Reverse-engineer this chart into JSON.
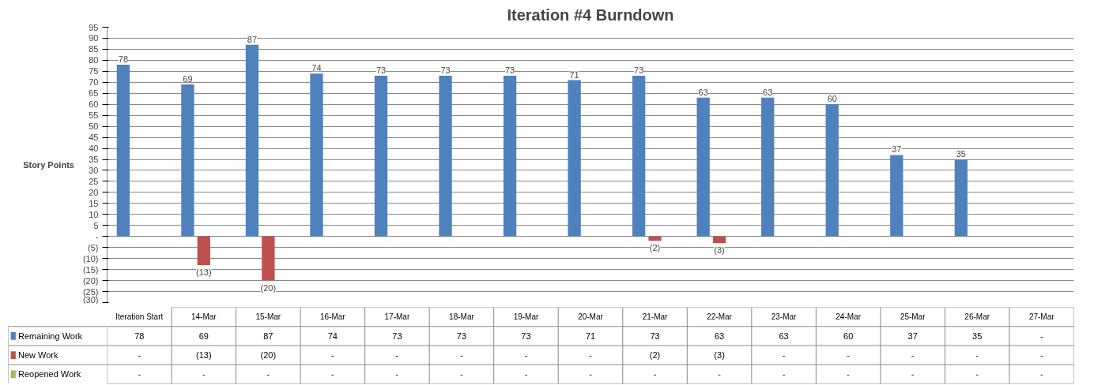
{
  "chart_data": {
    "type": "bar",
    "title": "Iteration #4 Burndown",
    "ylabel": "Story Points",
    "categories": [
      "Iteration Start",
      "14-Mar",
      "15-Mar",
      "16-Mar",
      "17-Mar",
      "18-Mar",
      "19-Mar",
      "20-Mar",
      "21-Mar",
      "22-Mar",
      "23-Mar",
      "24-Mar",
      "25-Mar",
      "26-Mar",
      "27-Mar"
    ],
    "series": [
      {
        "name": "Remaining Work",
        "color": "#4f81bd",
        "values": [
          78,
          69,
          87,
          74,
          73,
          73,
          73,
          71,
          73,
          63,
          63,
          60,
          37,
          35,
          0
        ],
        "value_labels": [
          "78",
          "69",
          "87",
          "74",
          "73",
          "73",
          "73",
          "71",
          "73",
          "63",
          "63",
          "60",
          "37",
          "35",
          "-"
        ]
      },
      {
        "name": "New Work",
        "color": "#c0504d",
        "values": [
          0,
          -13,
          -20,
          0,
          0,
          0,
          0,
          0,
          -2,
          -3,
          0,
          0,
          0,
          0,
          0
        ],
        "value_labels": [
          "-",
          "(13)",
          "(20)",
          "-",
          "-",
          "-",
          "-",
          "-",
          "(2)",
          "(3)",
          "-",
          "-",
          "-",
          "-",
          "-"
        ]
      },
      {
        "name": "Reopened Work",
        "color": "#9bbb59",
        "values": [
          0,
          0,
          0,
          0,
          0,
          0,
          0,
          0,
          0,
          0,
          0,
          0,
          0,
          0,
          0
        ],
        "value_labels": [
          "-",
          "-",
          "-",
          "-",
          "-",
          "-",
          "-",
          "-",
          "-",
          "-",
          "-",
          "-",
          "-",
          "-",
          "-"
        ]
      }
    ],
    "ylim": [
      -30,
      95
    ],
    "yticks": [
      {
        "value": -30,
        "label": "(30)"
      },
      {
        "value": -25,
        "label": "(25)"
      },
      {
        "value": -20,
        "label": "(20)"
      },
      {
        "value": -15,
        "label": "(15)"
      },
      {
        "value": -10,
        "label": "(10)"
      },
      {
        "value": -5,
        "label": "(5)"
      },
      {
        "value": 0,
        "label": "-"
      },
      5,
      10,
      15,
      20,
      25,
      30,
      35,
      40,
      45,
      50,
      55,
      60,
      65,
      70,
      75,
      80,
      85,
      90,
      95
    ],
    "grid": "y",
    "legend": "bottom",
    "data_labels": true
  }
}
